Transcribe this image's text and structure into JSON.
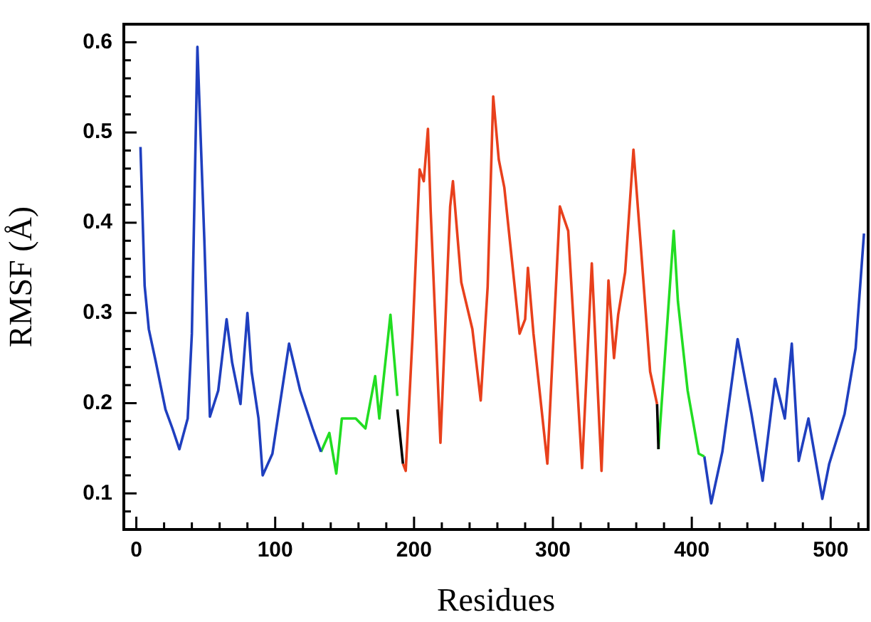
{
  "chart_data": {
    "type": "line",
    "xlabel": "Residues",
    "ylabel": "RMSF (Å)",
    "xlim": [
      -9,
      527
    ],
    "ylim": [
      0.06,
      0.62
    ],
    "xticks": [
      0,
      {
        "value": 20,
        "label": null
      },
      {
        "value": 40,
        "label": null
      },
      {
        "value": 60,
        "label": null
      },
      {
        "value": 80,
        "label": null
      },
      100,
      {
        "value": 120,
        "label": null
      },
      {
        "value": 140,
        "label": null
      },
      {
        "value": 160,
        "label": null
      },
      {
        "value": 180,
        "label": null
      },
      200,
      {
        "value": 220,
        "label": null
      },
      {
        "value": 240,
        "label": null
      },
      {
        "value": 260,
        "label": null
      },
      {
        "value": 280,
        "label": null
      },
      300,
      {
        "value": 320,
        "label": null
      },
      {
        "value": 340,
        "label": null
      },
      {
        "value": 360,
        "label": null
      },
      {
        "value": 380,
        "label": null
      },
      400,
      {
        "value": 420,
        "label": null
      },
      {
        "value": 440,
        "label": null
      },
      {
        "value": 460,
        "label": null
      },
      {
        "value": 480,
        "label": null
      },
      500,
      {
        "value": 520,
        "label": null
      }
    ],
    "yticks": [
      {
        "value": 0.08,
        "label": null
      },
      0.1,
      {
        "value": 0.12,
        "label": null
      },
      {
        "value": 0.14,
        "label": null
      },
      {
        "value": 0.16,
        "label": null
      },
      {
        "value": 0.18,
        "label": null
      },
      0.2,
      {
        "value": 0.22,
        "label": null
      },
      {
        "value": 0.24,
        "label": null
      },
      {
        "value": 0.26,
        "label": null
      },
      {
        "value": 0.28,
        "label": null
      },
      0.3,
      {
        "value": 0.32,
        "label": null
      },
      {
        "value": 0.34,
        "label": null
      },
      {
        "value": 0.36,
        "label": null
      },
      {
        "value": 0.38,
        "label": null
      },
      0.4,
      {
        "value": 0.42,
        "label": null
      },
      {
        "value": 0.44,
        "label": null
      },
      {
        "value": 0.46,
        "label": null
      },
      {
        "value": 0.48,
        "label": null
      },
      0.5,
      {
        "value": 0.52,
        "label": null
      },
      {
        "value": 0.54,
        "label": null
      },
      {
        "value": 0.56,
        "label": null
      },
      {
        "value": 0.58,
        "label": null
      },
      0.6
    ],
    "grid": false,
    "legend": false,
    "marker": "none",
    "line_style": "solid",
    "series": [
      {
        "color": "#1f3fbf",
        "x": [
          3,
          6,
          9,
          14,
          21,
          26,
          31,
          37,
          40,
          44,
          49,
          53,
          59,
          65,
          69,
          75,
          80,
          83,
          88,
          91,
          98,
          110,
          118,
          127,
          133
        ],
        "values": [
          0.484,
          0.33,
          0.282,
          0.246,
          0.193,
          0.172,
          0.149,
          0.183,
          0.277,
          0.595,
          0.38,
          0.185,
          0.214,
          0.293,
          0.245,
          0.199,
          0.3,
          0.235,
          0.183,
          0.12,
          0.144,
          0.266,
          0.214,
          0.172,
          0.146
        ]
      },
      {
        "color": "#22dd22",
        "x": [
          133,
          139,
          144,
          148,
          158,
          165,
          172,
          175,
          183,
          188
        ],
        "values": [
          0.146,
          0.167,
          0.122,
          0.183,
          0.183,
          0.172,
          0.23,
          0.183,
          0.298,
          0.208
        ]
      },
      {
        "color": "#000000",
        "x": [
          188,
          192
        ],
        "values": [
          0.193,
          0.133
        ]
      },
      {
        "color": "#e8401c",
        "x": [
          192,
          194,
          199,
          204,
          207,
          210,
          212,
          219,
          226,
          228,
          234,
          242,
          248,
          253,
          257,
          261,
          265,
          276,
          280,
          282,
          286,
          296,
          305,
          311,
          321,
          328,
          335,
          340,
          344,
          347,
          352,
          358,
          363,
          370,
          375
        ],
        "values": [
          0.133,
          0.125,
          0.277,
          0.459,
          0.446,
          0.504,
          0.412,
          0.156,
          0.418,
          0.446,
          0.334,
          0.282,
          0.203,
          0.329,
          0.54,
          0.47,
          0.439,
          0.277,
          0.293,
          0.35,
          0.277,
          0.133,
          0.418,
          0.391,
          0.128,
          0.355,
          0.125,
          0.336,
          0.25,
          0.298,
          0.345,
          0.481,
          0.38,
          0.235,
          0.199
        ]
      },
      {
        "color": "#000000",
        "x": [
          375,
          376
        ],
        "values": [
          0.199,
          0.149
        ]
      },
      {
        "color": "#22dd22",
        "x": [
          376,
          387,
          390,
          397,
          405,
          409
        ],
        "values": [
          0.149,
          0.391,
          0.313,
          0.214,
          0.144,
          0.141
        ]
      },
      {
        "color": "#1f3fbf",
        "x": [
          409,
          414,
          422,
          433,
          443,
          451,
          460,
          467,
          472,
          477,
          484,
          494,
          499,
          510,
          518,
          524
        ],
        "values": [
          0.141,
          0.089,
          0.146,
          0.271,
          0.188,
          0.114,
          0.227,
          0.183,
          0.266,
          0.136,
          0.183,
          0.094,
          0.133,
          0.188,
          0.261,
          0.388
        ]
      }
    ]
  }
}
